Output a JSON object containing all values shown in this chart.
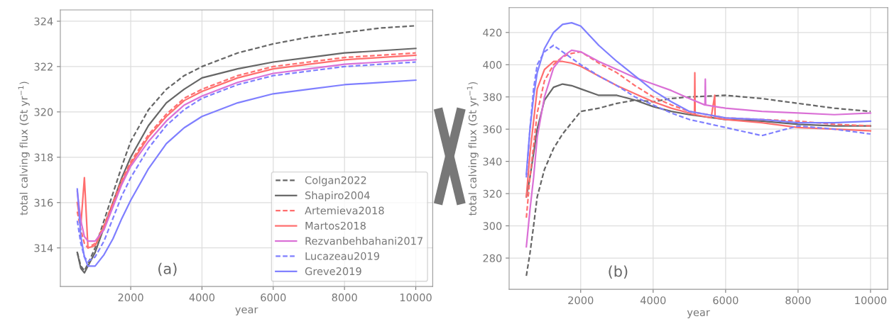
{
  "chart_data": [
    {
      "type": "line",
      "xlabel": "year",
      "ylabel": "total calving flux (Gt yr$^{−1}$)",
      "annotations": [
        "(a)"
      ],
      "xlim": [
        25,
        10475
      ],
      "xticks": [
        2000,
        4000,
        6000,
        8000,
        10000
      ],
      "ylim": [
        312.3,
        324.5
      ],
      "yticks": [
        314,
        316,
        318,
        320,
        322,
        324
      ],
      "grid": true,
      "legend": "lower right",
      "x": [
        500,
        600,
        700,
        800,
        1000,
        1250,
        1500,
        1750,
        2000,
        2500,
        3000,
        3500,
        4000,
        5000,
        6000,
        7000,
        8000,
        9000,
        10000
      ],
      "series": [
        {
          "name": "Colgan2022",
          "color": "#666666",
          "line_style": "dashed",
          "values": [
            313.8,
            313.2,
            313.0,
            313.3,
            314.0,
            315.2,
            316.4,
            317.6,
            318.7,
            320.1,
            321.0,
            321.6,
            322.0,
            322.6,
            323.0,
            323.3,
            323.5,
            323.7,
            323.8
          ]
        },
        {
          "name": "Shapiro2004",
          "color": "#666666",
          "line_style": "solid",
          "values": [
            313.8,
            313.1,
            312.9,
            313.2,
            313.8,
            314.9,
            316.0,
            317.1,
            318.0,
            319.4,
            320.4,
            321.0,
            321.5,
            321.9,
            322.2,
            322.4,
            322.6,
            322.7,
            322.8
          ]
        },
        {
          "name": "Artemieva2018",
          "color": "#ff6e6e",
          "line_style": "dashed",
          "values": [
            315.6,
            314.8,
            314.2,
            314.0,
            314.2,
            315.0,
            316.0,
            317.0,
            317.8,
            319.0,
            319.9,
            320.6,
            321.0,
            321.6,
            322.0,
            322.2,
            322.4,
            322.5,
            322.6
          ]
        },
        {
          "name": "Martos2018",
          "color": "#ff6e6e",
          "line_style": "solid",
          "values": [
            316.0,
            315.0,
            317.1,
            314.0,
            314.1,
            314.9,
            315.9,
            316.9,
            317.7,
            318.9,
            319.8,
            320.5,
            320.9,
            321.5,
            321.9,
            322.1,
            322.3,
            322.4,
            322.5
          ]
        },
        {
          "name": "Rezvanbehbahani2017",
          "color": "#da70d6",
          "line_style": "solid",
          "values": [
            316.5,
            315.2,
            314.5,
            314.3,
            314.3,
            314.8,
            315.8,
            316.8,
            317.6,
            318.7,
            319.6,
            320.3,
            320.7,
            321.3,
            321.7,
            321.9,
            322.1,
            322.2,
            322.3
          ]
        },
        {
          "name": "Lucazeau2019",
          "color": "#7f7fff",
          "line_style": "dashed",
          "values": [
            315.2,
            314.2,
            313.6,
            313.4,
            313.6,
            314.3,
            315.3,
            316.3,
            317.1,
            318.4,
            319.4,
            320.1,
            320.6,
            321.2,
            321.6,
            321.8,
            322.0,
            322.1,
            322.2
          ]
        },
        {
          "name": "Greve2019",
          "color": "#7f7fff",
          "line_style": "solid",
          "values": [
            316.6,
            314.5,
            313.6,
            313.2,
            313.2,
            313.7,
            314.4,
            315.3,
            316.1,
            317.5,
            318.6,
            319.3,
            319.8,
            320.4,
            320.8,
            321.0,
            321.2,
            321.3,
            321.4
          ]
        }
      ]
    },
    {
      "type": "line",
      "xlabel": "year",
      "ylabel": "total calving flux (Gt yr$^{−1}$)",
      "annotations": [
        "(b)"
      ],
      "xlim": [
        25,
        10475
      ],
      "xticks": [
        2000,
        4000,
        6000,
        8000,
        10000
      ],
      "ylim": [
        260.6,
        435.4
      ],
      "yticks": [
        280,
        300,
        320,
        340,
        360,
        380,
        400,
        420
      ],
      "grid": true,
      "x": [
        500,
        600,
        700,
        800,
        1000,
        1250,
        1500,
        1750,
        2000,
        2500,
        3000,
        3500,
        4000,
        4500,
        5000,
        6000,
        7000,
        8000,
        9000,
        10000
      ],
      "series": [
        {
          "color": "#666666",
          "line_style": "dashed",
          "values": [
            269,
            283,
            300,
            318,
            335,
            348,
            357,
            364,
            371,
            373,
            376,
            378,
            377,
            379,
            380,
            381,
            379,
            376,
            373,
            371
          ]
        },
        {
          "color": "#666666",
          "line_style": "solid",
          "values": [
            318,
            330,
            345,
            360,
            378,
            386,
            388,
            387,
            385,
            381,
            381,
            378,
            374,
            371,
            369,
            366,
            365,
            363,
            362,
            362
          ]
        },
        {
          "color": "#ff6e6e",
          "line_style": "dashed",
          "values": [
            305,
            330,
            350,
            370,
            390,
            400,
            405,
            407,
            408,
            401,
            395,
            387,
            380,
            375,
            371,
            367,
            366,
            365,
            363,
            362
          ]
        },
        {
          "color": "#ff6e6e",
          "line_style": "solid",
          "x": [
            500,
            600,
            700,
            800,
            1000,
            1250,
            1500,
            1750,
            2000,
            2500,
            3000,
            3500,
            4000,
            4500,
            5000,
            5140,
            5150,
            5160,
            5600,
            5700,
            5710,
            6000,
            7000,
            8000,
            9000,
            10000
          ],
          "values": [
            318,
            345,
            365,
            385,
            397,
            402,
            402,
            401,
            399,
            393,
            387,
            382,
            377,
            373,
            370,
            369,
            395,
            369,
            367,
            381,
            367,
            366,
            364,
            361,
            360,
            359
          ]
        },
        {
          "color": "#da70d6",
          "line_style": "solid",
          "x": [
            500,
            600,
            700,
            800,
            1000,
            1250,
            1500,
            1750,
            2000,
            2500,
            3000,
            3500,
            4000,
            4500,
            5000,
            5430,
            5440,
            5450,
            6000,
            7000,
            8000,
            9000,
            10000
          ],
          "values": [
            287,
            310,
            330,
            355,
            380,
            398,
            405,
            409,
            408,
            402,
            397,
            392,
            388,
            384,
            379,
            375,
            391,
            375,
            373,
            371,
            370,
            369,
            370
          ]
        },
        {
          "color": "#7f7fff",
          "line_style": "dashed",
          "values": [
            330,
            360,
            385,
            400,
            408,
            412,
            408,
            404,
            400,
            393,
            387,
            380,
            375,
            370,
            366,
            361,
            356,
            362,
            360,
            357
          ]
        },
        {
          "color": "#7f7fff",
          "line_style": "solid",
          "values": [
            332,
            360,
            380,
            395,
            410,
            420,
            425,
            426,
            424,
            412,
            402,
            393,
            384,
            377,
            371,
            367,
            366,
            364,
            364,
            365
          ]
        }
      ]
    }
  ]
}
